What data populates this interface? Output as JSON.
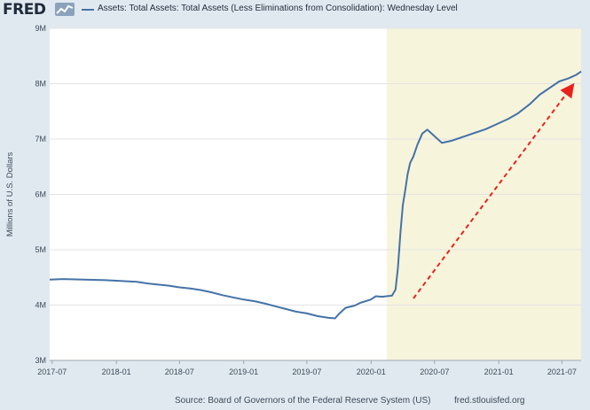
{
  "header": {
    "logo": "FRED",
    "legend_label": "Assets: Total Assets: Total Assets (Less Eliminations from Consolidation): Wednesday Level"
  },
  "footer": {
    "source": "Source: Board of Governors of the Federal Reserve System (US)",
    "site": "fred.stlouisfed.org"
  },
  "colors": {
    "background": "#e1e9f0",
    "plot": "#ffffff",
    "recession_shade": "#f7f4dc",
    "series": "#4572a7",
    "arrow": "#e8221b"
  },
  "chart_data": {
    "type": "line",
    "ylabel": "Millions of U.S. Dollars",
    "xlim": [
      "2017-06-24",
      "2021-08-25"
    ],
    "ylim": [
      3,
      9
    ],
    "ytick_labels": [
      "3M",
      "4M",
      "5M",
      "6M",
      "7M",
      "8M",
      "9M"
    ],
    "ytick_values": [
      3,
      4,
      5,
      6,
      7,
      8,
      9
    ],
    "xtick_labels": [
      "2017-07",
      "2018-01",
      "2018-07",
      "2019-01",
      "2019-07",
      "2020-01",
      "2020-07",
      "2021-01",
      "2021-07"
    ],
    "xtick_dates": [
      "2017-07-01",
      "2018-01-01",
      "2018-07-01",
      "2019-01-01",
      "2019-07-01",
      "2020-01-01",
      "2020-07-01",
      "2021-01-01",
      "2021-07-01"
    ],
    "grid": "horizontal",
    "shaded_region": {
      "start": "2020-02-15",
      "end": "2021-08-25"
    },
    "series": [
      {
        "points": [
          [
            "2017-06-24",
            4.46
          ],
          [
            "2017-08-01",
            4.47
          ],
          [
            "2017-10-01",
            4.46
          ],
          [
            "2017-12-01",
            4.45
          ],
          [
            "2018-01-01",
            4.44
          ],
          [
            "2018-03-01",
            4.42
          ],
          [
            "2018-04-01",
            4.39
          ],
          [
            "2018-05-01",
            4.37
          ],
          [
            "2018-06-01",
            4.35
          ],
          [
            "2018-07-01",
            4.32
          ],
          [
            "2018-08-01",
            4.3
          ],
          [
            "2018-09-01",
            4.27
          ],
          [
            "2018-10-01",
            4.23
          ],
          [
            "2018-11-01",
            4.18
          ],
          [
            "2018-12-01",
            4.14
          ],
          [
            "2019-01-01",
            4.1
          ],
          [
            "2019-02-01",
            4.07
          ],
          [
            "2019-03-01",
            4.03
          ],
          [
            "2019-04-01",
            3.98
          ],
          [
            "2019-05-01",
            3.93
          ],
          [
            "2019-06-01",
            3.88
          ],
          [
            "2019-07-01",
            3.85
          ],
          [
            "2019-08-01",
            3.8
          ],
          [
            "2019-09-01",
            3.77
          ],
          [
            "2019-09-20",
            3.76
          ],
          [
            "2019-10-01",
            3.84
          ],
          [
            "2019-10-20",
            3.95
          ],
          [
            "2019-11-15",
            3.99
          ],
          [
            "2019-12-01",
            4.04
          ],
          [
            "2019-12-31",
            4.1
          ],
          [
            "2020-01-15",
            4.16
          ],
          [
            "2020-02-01",
            4.15
          ],
          [
            "2020-02-15",
            4.16
          ],
          [
            "2020-03-01",
            4.17
          ],
          [
            "2020-03-11",
            4.28
          ],
          [
            "2020-03-18",
            4.67
          ],
          [
            "2020-03-25",
            5.3
          ],
          [
            "2020-04-01",
            5.8
          ],
          [
            "2020-04-08",
            6.08
          ],
          [
            "2020-04-15",
            6.37
          ],
          [
            "2020-04-22",
            6.57
          ],
          [
            "2020-05-01",
            6.68
          ],
          [
            "2020-05-13",
            6.9
          ],
          [
            "2020-05-27",
            7.1
          ],
          [
            "2020-06-10",
            7.17
          ],
          [
            "2020-06-24",
            7.09
          ],
          [
            "2020-07-08",
            7.01
          ],
          [
            "2020-07-22",
            6.93
          ],
          [
            "2020-08-05",
            6.95
          ],
          [
            "2020-08-19",
            6.97
          ],
          [
            "2020-09-02",
            7.0
          ],
          [
            "2020-09-30",
            7.06
          ],
          [
            "2020-10-28",
            7.12
          ],
          [
            "2020-11-25",
            7.18
          ],
          [
            "2020-12-30",
            7.28
          ],
          [
            "2021-01-27",
            7.36
          ],
          [
            "2021-02-24",
            7.46
          ],
          [
            "2021-03-31",
            7.63
          ],
          [
            "2021-04-28",
            7.8
          ],
          [
            "2021-05-26",
            7.92
          ],
          [
            "2021-06-23",
            8.04
          ],
          [
            "2021-07-21",
            8.1
          ],
          [
            "2021-08-11",
            8.16
          ],
          [
            "2021-08-25",
            8.22
          ]
        ]
      }
    ]
  }
}
